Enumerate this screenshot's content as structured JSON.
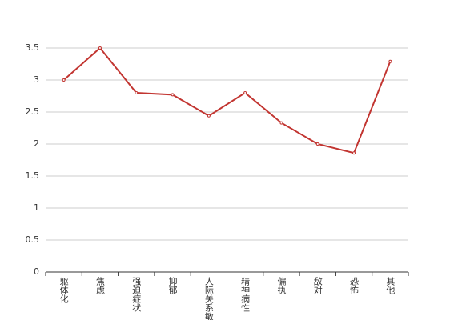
{
  "chart_data": {
    "type": "line",
    "categories": [
      "躯体化",
      "焦虑",
      "强迫症状",
      "抑郁",
      "人际关系敏感",
      "精神病性",
      "偏执",
      "敌对",
      "恐怖",
      "其他"
    ],
    "values": [
      3.0,
      3.5,
      2.8,
      2.77,
      2.44,
      2.8,
      2.33,
      2.0,
      1.86,
      3.29
    ],
    "color": "#c23531",
    "ylim": [
      0,
      3.5
    ],
    "yticks": [
      0,
      0.5,
      1,
      1.5,
      2,
      2.5,
      3,
      3.5
    ],
    "grid": true
  }
}
